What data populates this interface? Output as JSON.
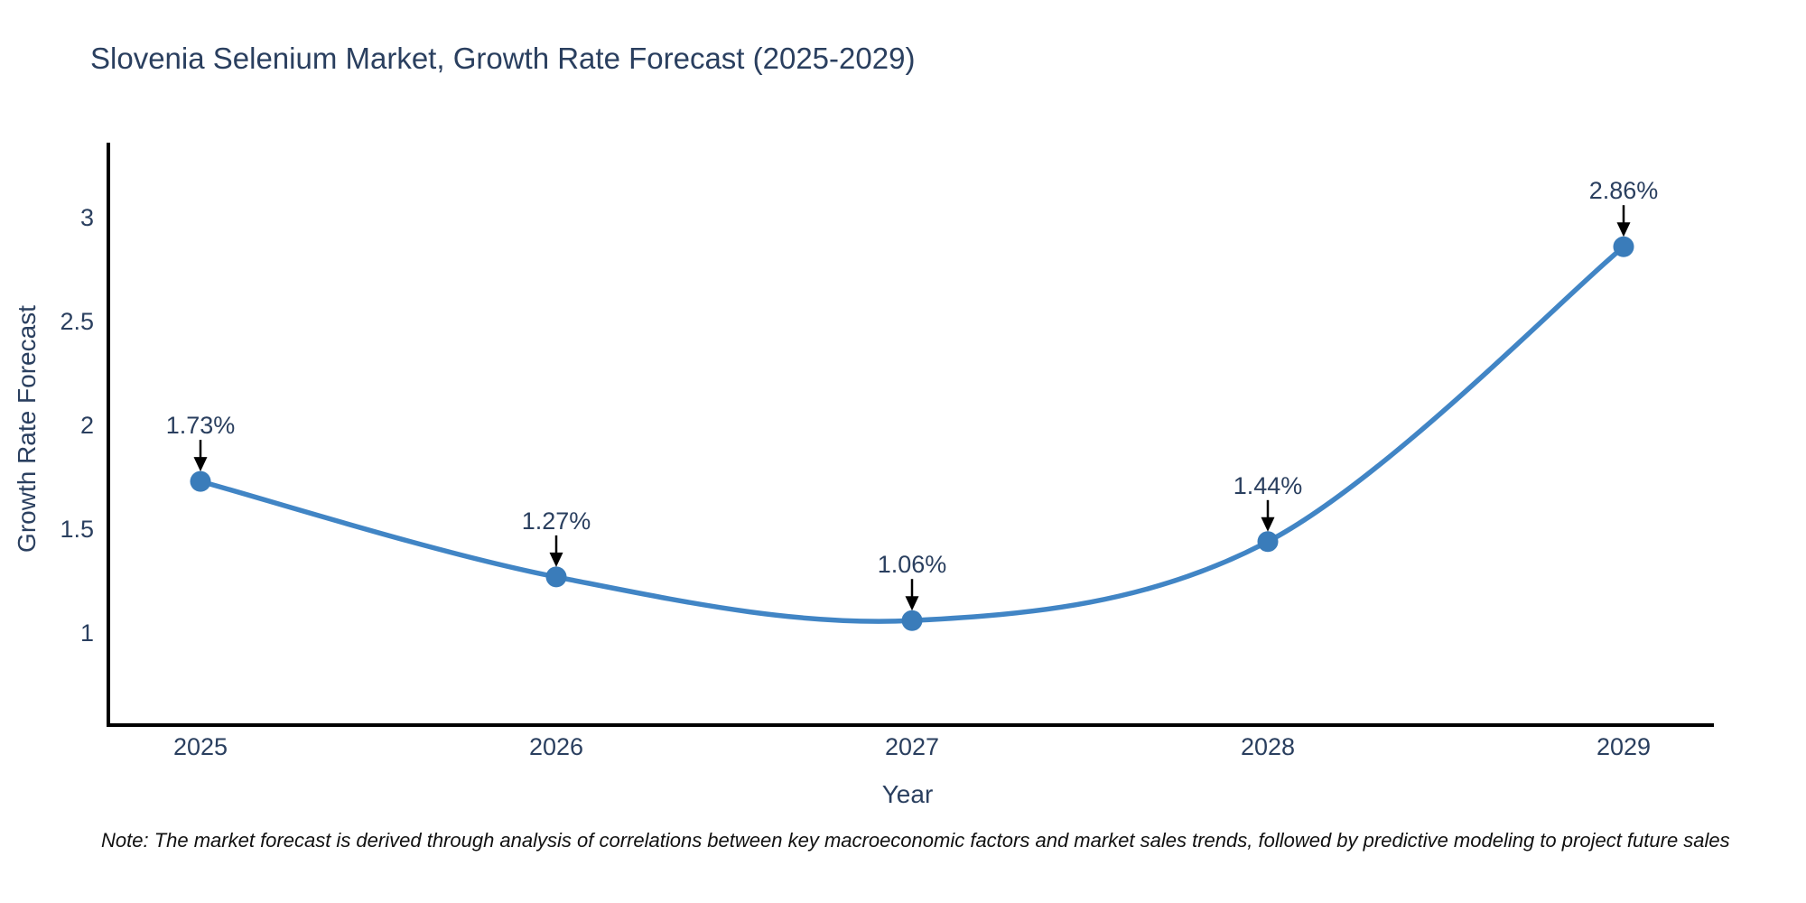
{
  "title": "Slovenia Selenium Market, Growth Rate Forecast (2025-2029)",
  "note": "Note: The market forecast is derived through analysis of correlations between key macroeconomic factors and market sales trends, followed by predictive modeling to project future sales",
  "chart_data": {
    "type": "line",
    "title": "Slovenia Selenium Market, Growth Rate Forecast (2025-2029)",
    "x": [
      2025,
      2026,
      2027,
      2028,
      2029
    ],
    "values": [
      1.73,
      1.27,
      1.06,
      1.44,
      2.86
    ],
    "point_labels": [
      "1.73%",
      "1.27%",
      "1.06%",
      "1.44%",
      "2.86%"
    ],
    "xlabel": "Year",
    "ylabel": "Growth Rate Forecast",
    "x_tick_labels": [
      "2025",
      "2026",
      "2027",
      "2028",
      "2029"
    ],
    "y_tick_values": [
      1,
      1.5,
      2,
      2.5,
      3
    ],
    "y_tick_labels": [
      "1",
      "1.5",
      "2",
      "2.5",
      "3"
    ],
    "xlim": [
      2024.74,
      2029.26
    ],
    "ylim": [
      0.56,
      3.35
    ],
    "line_shape": "spline",
    "grid": false,
    "legend_visible": false,
    "colors": {
      "line": "#4185c5",
      "marker": "#3a7cba",
      "axis": "#000000",
      "text": "#2a3f5f",
      "annotation_arrow": "#000000",
      "background": "#ffffff"
    }
  }
}
